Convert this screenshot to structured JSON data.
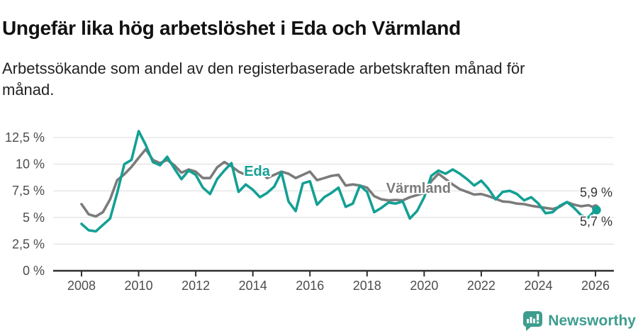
{
  "header": {
    "title": "Ungefär lika hög arbetslöshet i Eda och Värmland",
    "subtitle": "Arbetssökande som andel av den registerbaserade arbetskraften månad för månad."
  },
  "footer": {
    "brand": "Newsworthy"
  },
  "colors": {
    "eda": "#13a094",
    "varmland": "#7b7b7b",
    "grid": "#dcdcdc",
    "axis": "#2f2f2f",
    "tick_text": "#4d4d4d",
    "end_label_text": "#333333",
    "title_text": "#111111",
    "brand": "#3e9d8f"
  },
  "chart_data": {
    "type": "line",
    "title": "Ungefär lika hög arbetslöshet i Eda och Värmland",
    "subtitle": "Arbetssökande som andel av den registerbaserade arbetskraften månad för månad.",
    "unit": "%",
    "grid": true,
    "x_start": 2008.0,
    "x_step": 0.25,
    "x_axis": {
      "range": [
        2007.0,
        2026.65
      ],
      "ticks": [
        2008,
        2010,
        2012,
        2014,
        2016,
        2018,
        2020,
        2022,
        2024,
        2026
      ],
      "tick_labels": [
        "2008",
        "2010",
        "2012",
        "2014",
        "2016",
        "2018",
        "2020",
        "2022",
        "2024",
        "2026"
      ]
    },
    "y_axis": {
      "range": [
        0,
        13.5
      ],
      "ticks": [
        0,
        2.5,
        5,
        7.5,
        10,
        12.5
      ],
      "tick_labels": [
        "0 %",
        "2,5 %",
        "5 %",
        "7,5 %",
        "10 %",
        "12,5 %"
      ]
    },
    "series": [
      {
        "name": "Eda",
        "color": "#13a094",
        "final_value": 5.7,
        "end_label": "5,7 %",
        "values": [
          4.4,
          3.8,
          3.7,
          4.3,
          4.9,
          7.3,
          10.0,
          10.4,
          13.1,
          11.8,
          10.2,
          9.9,
          10.7,
          9.6,
          8.6,
          9.4,
          9.0,
          7.8,
          7.2,
          8.6,
          9.4,
          10.1,
          7.4,
          8.1,
          7.6,
          6.9,
          7.3,
          7.9,
          9.25,
          6.5,
          5.6,
          8.2,
          8.4,
          6.2,
          6.9,
          7.3,
          7.8,
          6.0,
          6.3,
          8.0,
          7.4,
          5.5,
          5.9,
          6.4,
          6.3,
          6.5,
          4.9,
          5.6,
          6.9,
          8.9,
          9.4,
          9.1,
          9.5,
          9.1,
          8.6,
          8.0,
          8.45,
          7.7,
          6.7,
          7.4,
          7.5,
          7.2,
          6.6,
          6.9,
          6.3,
          5.4,
          5.5,
          6.1,
          6.45,
          5.9,
          5.2,
          5.0,
          5.7
        ]
      },
      {
        "name": "Värmland",
        "color": "#7b7b7b",
        "final_value": 5.9,
        "end_label": "5,9 %",
        "values": [
          6.25,
          5.3,
          5.1,
          5.5,
          6.7,
          8.5,
          9.05,
          9.75,
          10.6,
          11.4,
          10.4,
          10.1,
          10.4,
          9.9,
          9.2,
          9.5,
          9.3,
          8.7,
          8.7,
          9.7,
          10.2,
          9.8,
          9.3,
          9.0,
          9.1,
          9.3,
          8.7,
          9.0,
          9.3,
          9.1,
          8.7,
          9.0,
          9.3,
          8.5,
          8.7,
          8.9,
          9.0,
          8.0,
          8.1,
          8.0,
          7.8,
          7.0,
          6.7,
          6.6,
          6.65,
          6.6,
          6.9,
          7.1,
          7.3,
          8.4,
          9.1,
          8.6,
          8.1,
          7.65,
          7.4,
          7.15,
          7.2,
          7.0,
          6.75,
          6.5,
          6.45,
          6.3,
          6.25,
          6.1,
          6.0,
          5.9,
          5.8,
          6.0,
          6.45,
          6.2,
          6.05,
          6.15,
          5.9
        ]
      }
    ],
    "series_labels": [
      {
        "text": "Eda",
        "x": 2013.69,
        "y": 8.9,
        "color": "#13a094"
      },
      {
        "text": "Värmland",
        "x": 2018.67,
        "y": 7.3,
        "color": "#7b7b7b"
      }
    ],
    "legend_position": "inline-labels"
  }
}
